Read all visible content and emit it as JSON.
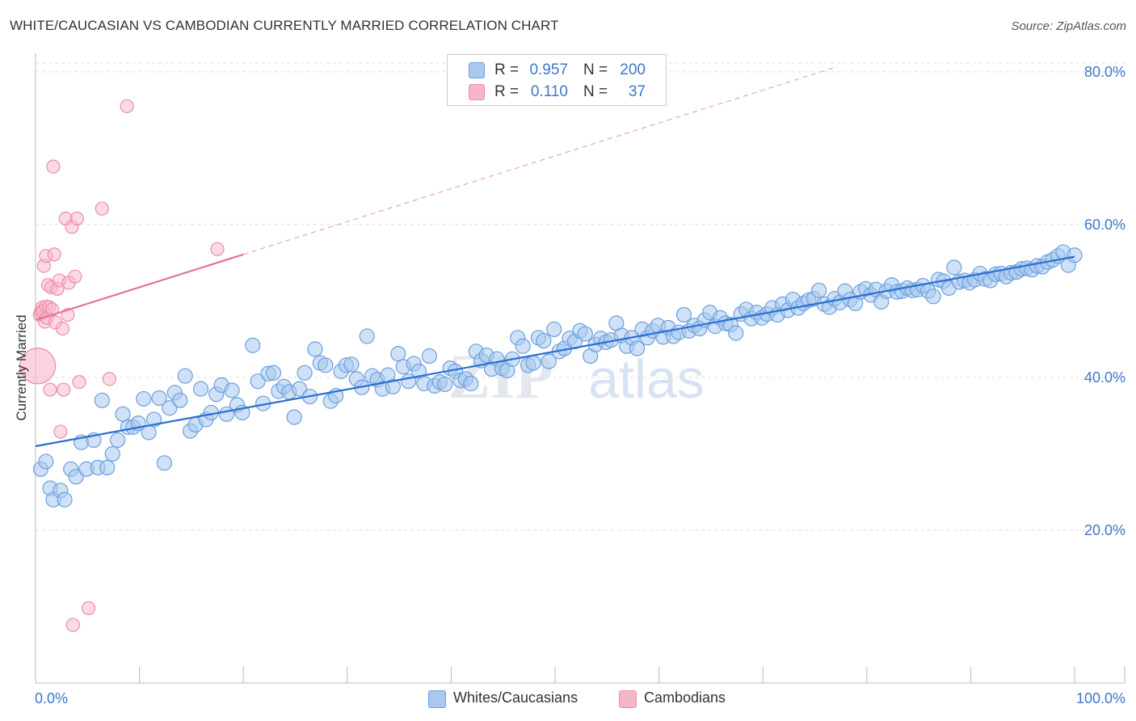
{
  "title": "WHITE/CAUCASIAN VS CAMBODIAN CURRENTLY MARRIED CORRELATION CHART",
  "source": "Source: ZipAtlas.com",
  "legend": {
    "rows": [
      {
        "r_label": "R =",
        "r_value": "0.957",
        "n_label": "N =",
        "n_value": "200",
        "color": "#a8c8f0"
      },
      {
        "r_label": "R =",
        "r_value": "0.110",
        "n_label": "N =",
        "n_value": "37",
        "color": "#f7b6c8"
      }
    ]
  },
  "bottom_legend": [
    {
      "label": "Whites/Caucasians",
      "color": "#a8c8f0"
    },
    {
      "label": "Cambodians",
      "color": "#f7b6c8"
    }
  ],
  "watermark": {
    "part1": "ZIP",
    "part2": "atlas"
  },
  "chart_data": {
    "type": "scatter",
    "title": "WHITE/CAUCASIAN VS CAMBODIAN CURRENTLY MARRIED CORRELATION CHART",
    "xlabel": "",
    "ylabel": "Currently Married",
    "xlim": [
      0,
      100
    ],
    "ylim": [
      0,
      82
    ],
    "x_tick_labels": [
      "0.0%",
      "100.0%"
    ],
    "y_ticks": [
      20,
      40,
      60,
      80
    ],
    "y_tick_labels": [
      "20.0%",
      "40.0%",
      "60.0%",
      "80.0%"
    ],
    "grid": true,
    "colors": {
      "white_fill": "#a8c8f0",
      "white_stroke": "#6d9fdc",
      "white_line": "#2a6fd1",
      "camb_fill": "#f7b6c8",
      "camb_stroke": "#ea8eab",
      "camb_line": "#e3739a",
      "tick_text": "#3a78c9",
      "grid": "#dddddd"
    },
    "series": [
      {
        "name": "Whites/Caucasians",
        "trend": {
          "x0": 0,
          "y0": 31.0,
          "x1": 100,
          "y1": 55.8
        },
        "points": [
          [
            0.5,
            28
          ],
          [
            1,
            29
          ],
          [
            1.4,
            25.5
          ],
          [
            1.7,
            24
          ],
          [
            2.4,
            25.2
          ],
          [
            2.8,
            24
          ],
          [
            3.4,
            28
          ],
          [
            3.9,
            27
          ],
          [
            4.4,
            31.5
          ],
          [
            4.9,
            28
          ],
          [
            5.6,
            31.8
          ],
          [
            6,
            28.2
          ],
          [
            6.4,
            37
          ],
          [
            6.9,
            28.2
          ],
          [
            7.4,
            30
          ],
          [
            7.9,
            31.8
          ],
          [
            8.4,
            35.2
          ],
          [
            8.9,
            33.5
          ],
          [
            9.4,
            33.5
          ],
          [
            9.9,
            34
          ],
          [
            10.4,
            37.2
          ],
          [
            10.9,
            32.8
          ],
          [
            11.4,
            34.5
          ],
          [
            11.9,
            37.3
          ],
          [
            12.4,
            28.8
          ],
          [
            12.9,
            36
          ],
          [
            13.4,
            38
          ],
          [
            13.9,
            37
          ],
          [
            14.4,
            40.2
          ],
          [
            14.9,
            33
          ],
          [
            15.4,
            33.8
          ],
          [
            15.9,
            38.5
          ],
          [
            16.4,
            34.5
          ],
          [
            16.9,
            35.4
          ],
          [
            17.4,
            37.8
          ],
          [
            17.9,
            39
          ],
          [
            18.4,
            35.2
          ],
          [
            18.9,
            38.3
          ],
          [
            19.4,
            36.4
          ],
          [
            19.9,
            35.4
          ],
          [
            20.9,
            44.2
          ],
          [
            21.4,
            39.5
          ],
          [
            21.9,
            36.6
          ],
          [
            22.4,
            40.5
          ],
          [
            22.9,
            40.6
          ],
          [
            23.4,
            38.2
          ],
          [
            23.9,
            38.8
          ],
          [
            24.4,
            38.1
          ],
          [
            24.9,
            34.8
          ],
          [
            25.4,
            38.5
          ],
          [
            25.9,
            40.6
          ],
          [
            26.4,
            37.5
          ],
          [
            26.9,
            43.7
          ],
          [
            27.4,
            41.9
          ],
          [
            27.9,
            41.6
          ],
          [
            28.4,
            36.9
          ],
          [
            28.9,
            37.6
          ],
          [
            29.4,
            40.8
          ],
          [
            29.9,
            41.6
          ],
          [
            30.4,
            41.7
          ],
          [
            30.9,
            39.8
          ],
          [
            31.4,
            38.7
          ],
          [
            31.9,
            45.4
          ],
          [
            32.4,
            40.2
          ],
          [
            32.9,
            39.7
          ],
          [
            33.4,
            38.5
          ],
          [
            33.9,
            40.3
          ],
          [
            34.4,
            38.8
          ],
          [
            34.9,
            43.1
          ],
          [
            35.4,
            41.4
          ],
          [
            35.9,
            39.5
          ],
          [
            36.4,
            41.8
          ],
          [
            36.9,
            40.8
          ],
          [
            37.4,
            39.2
          ],
          [
            37.9,
            42.8
          ],
          [
            38.4,
            38.9
          ],
          [
            38.9,
            39.4
          ],
          [
            39.4,
            39.1
          ],
          [
            39.9,
            41.2
          ],
          [
            40.4,
            40.8
          ],
          [
            40.9,
            39.6
          ],
          [
            41.4,
            39.8
          ],
          [
            41.9,
            39.2
          ],
          [
            42.4,
            43.4
          ],
          [
            42.9,
            42.2
          ],
          [
            43.4,
            42.9
          ],
          [
            43.9,
            41.1
          ],
          [
            44.4,
            42.4
          ],
          [
            44.9,
            41.2
          ],
          [
            45.4,
            40.9
          ],
          [
            45.9,
            42.4
          ],
          [
            46.4,
            45.2
          ],
          [
            46.9,
            44.1
          ],
          [
            47.4,
            41.6
          ],
          [
            47.9,
            41.9
          ],
          [
            48.4,
            45.2
          ],
          [
            48.9,
            44.8
          ],
          [
            49.4,
            42.1
          ],
          [
            49.9,
            46.3
          ],
          [
            50.4,
            43.4
          ],
          [
            50.9,
            43.8
          ],
          [
            51.4,
            45.1
          ],
          [
            51.9,
            44.7
          ],
          [
            52.4,
            46.1
          ],
          [
            52.9,
            45.7
          ],
          [
            53.4,
            42.8
          ],
          [
            53.9,
            44.3
          ],
          [
            54.4,
            45.1
          ],
          [
            54.9,
            44.6
          ],
          [
            55.4,
            44.9
          ],
          [
            55.9,
            47.1
          ],
          [
            56.4,
            45.5
          ],
          [
            56.9,
            44.1
          ],
          [
            57.4,
            45.2
          ],
          [
            57.9,
            43.8
          ],
          [
            58.4,
            46.3
          ],
          [
            58.9,
            45.2
          ],
          [
            59.4,
            46.1
          ],
          [
            59.9,
            46.8
          ],
          [
            60.4,
            45.3
          ],
          [
            60.9,
            46.5
          ],
          [
            61.4,
            45.4
          ],
          [
            61.9,
            45.9
          ],
          [
            62.4,
            48.2
          ],
          [
            62.9,
            46.1
          ],
          [
            63.4,
            46.8
          ],
          [
            63.9,
            46.4
          ],
          [
            64.4,
            47.5
          ],
          [
            64.9,
            48.5
          ],
          [
            65.4,
            46.7
          ],
          [
            65.9,
            47.8
          ],
          [
            66.4,
            47.1
          ],
          [
            66.9,
            46.9
          ],
          [
            67.4,
            45.8
          ],
          [
            67.9,
            48.3
          ],
          [
            68.4,
            48.9
          ],
          [
            68.9,
            47.7
          ],
          [
            69.4,
            48.5
          ],
          [
            69.9,
            47.8
          ],
          [
            70.4,
            48.3
          ],
          [
            70.9,
            49.1
          ],
          [
            71.4,
            48.2
          ],
          [
            71.9,
            49.6
          ],
          [
            72.4,
            48.8
          ],
          [
            72.9,
            50.2
          ],
          [
            73.4,
            49.1
          ],
          [
            73.9,
            49.7
          ],
          [
            74.4,
            50.1
          ],
          [
            74.9,
            50.3
          ],
          [
            75.4,
            51.4
          ],
          [
            75.9,
            49.6
          ],
          [
            76.4,
            49.2
          ],
          [
            76.9,
            50.3
          ],
          [
            77.4,
            49.8
          ],
          [
            77.9,
            51.3
          ],
          [
            78.4,
            50.2
          ],
          [
            78.9,
            49.7
          ],
          [
            79.4,
            51.2
          ],
          [
            79.9,
            51.6
          ],
          [
            80.4,
            50.8
          ],
          [
            80.9,
            51.5
          ],
          [
            81.4,
            49.9
          ],
          [
            81.9,
            51.3
          ],
          [
            82.4,
            52.1
          ],
          [
            82.9,
            51.2
          ],
          [
            83.4,
            51.3
          ],
          [
            83.9,
            51.7
          ],
          [
            84.4,
            51.4
          ],
          [
            84.9,
            51.5
          ],
          [
            85.4,
            52
          ],
          [
            85.9,
            51.3
          ],
          [
            86.4,
            50.6
          ],
          [
            86.9,
            52.8
          ],
          [
            87.4,
            52.6
          ],
          [
            87.9,
            51.7
          ],
          [
            88.4,
            54.4
          ],
          [
            88.9,
            52.5
          ],
          [
            89.4,
            52.7
          ],
          [
            89.9,
            52.4
          ],
          [
            90.4,
            52.8
          ],
          [
            90.9,
            53.6
          ],
          [
            91.4,
            52.9
          ],
          [
            91.9,
            52.7
          ],
          [
            92.4,
            53.5
          ],
          [
            92.9,
            53.6
          ],
          [
            93.4,
            53.2
          ],
          [
            93.9,
            53.7
          ],
          [
            94.4,
            53.8
          ],
          [
            94.9,
            54.2
          ],
          [
            95.4,
            54.3
          ],
          [
            95.9,
            54.1
          ],
          [
            96.4,
            54.6
          ],
          [
            96.9,
            54.5
          ],
          [
            97.4,
            55.1
          ],
          [
            97.9,
            55.4
          ],
          [
            98.4,
            55.9
          ],
          [
            98.9,
            56.4
          ],
          [
            99.4,
            54.7
          ],
          [
            100,
            56
          ]
        ]
      },
      {
        "name": "Cambodians",
        "trend": {
          "x0": 0,
          "y0": 47.5,
          "x1": 100,
          "y1": 90.5
        },
        "solid_until_x": 20,
        "points": [
          [
            0.2,
            41.5
          ],
          [
            0.4,
            48.2
          ],
          [
            0.5,
            48.6
          ],
          [
            0.6,
            49.1
          ],
          [
            0.7,
            48.7
          ],
          [
            0.8,
            54.6
          ],
          [
            0.9,
            47.3
          ],
          [
            1.0,
            49.3
          ],
          [
            1.0,
            55.9
          ],
          [
            1.1,
            47.8
          ],
          [
            1.2,
            52.1
          ],
          [
            1.3,
            49.2
          ],
          [
            1.4,
            38.4
          ],
          [
            1.5,
            51.8
          ],
          [
            1.6,
            48.9
          ],
          [
            1.7,
            67.6
          ],
          [
            1.8,
            56.1
          ],
          [
            1.9,
            47.2
          ],
          [
            2.1,
            51.6
          ],
          [
            2.3,
            52.7
          ],
          [
            2.4,
            32.9
          ],
          [
            2.6,
            46.4
          ],
          [
            2.7,
            38.4
          ],
          [
            2.9,
            60.8
          ],
          [
            3.1,
            48.2
          ],
          [
            3.2,
            52.4
          ],
          [
            3.5,
            59.7
          ],
          [
            3.6,
            7.6
          ],
          [
            3.8,
            53.2
          ],
          [
            4.0,
            60.8
          ],
          [
            4.2,
            39.4
          ],
          [
            5.1,
            9.8
          ],
          [
            6.4,
            62.1
          ],
          [
            7.1,
            39.8
          ],
          [
            8.8,
            75.5
          ],
          [
            17.5,
            56.8
          ]
        ]
      }
    ]
  }
}
